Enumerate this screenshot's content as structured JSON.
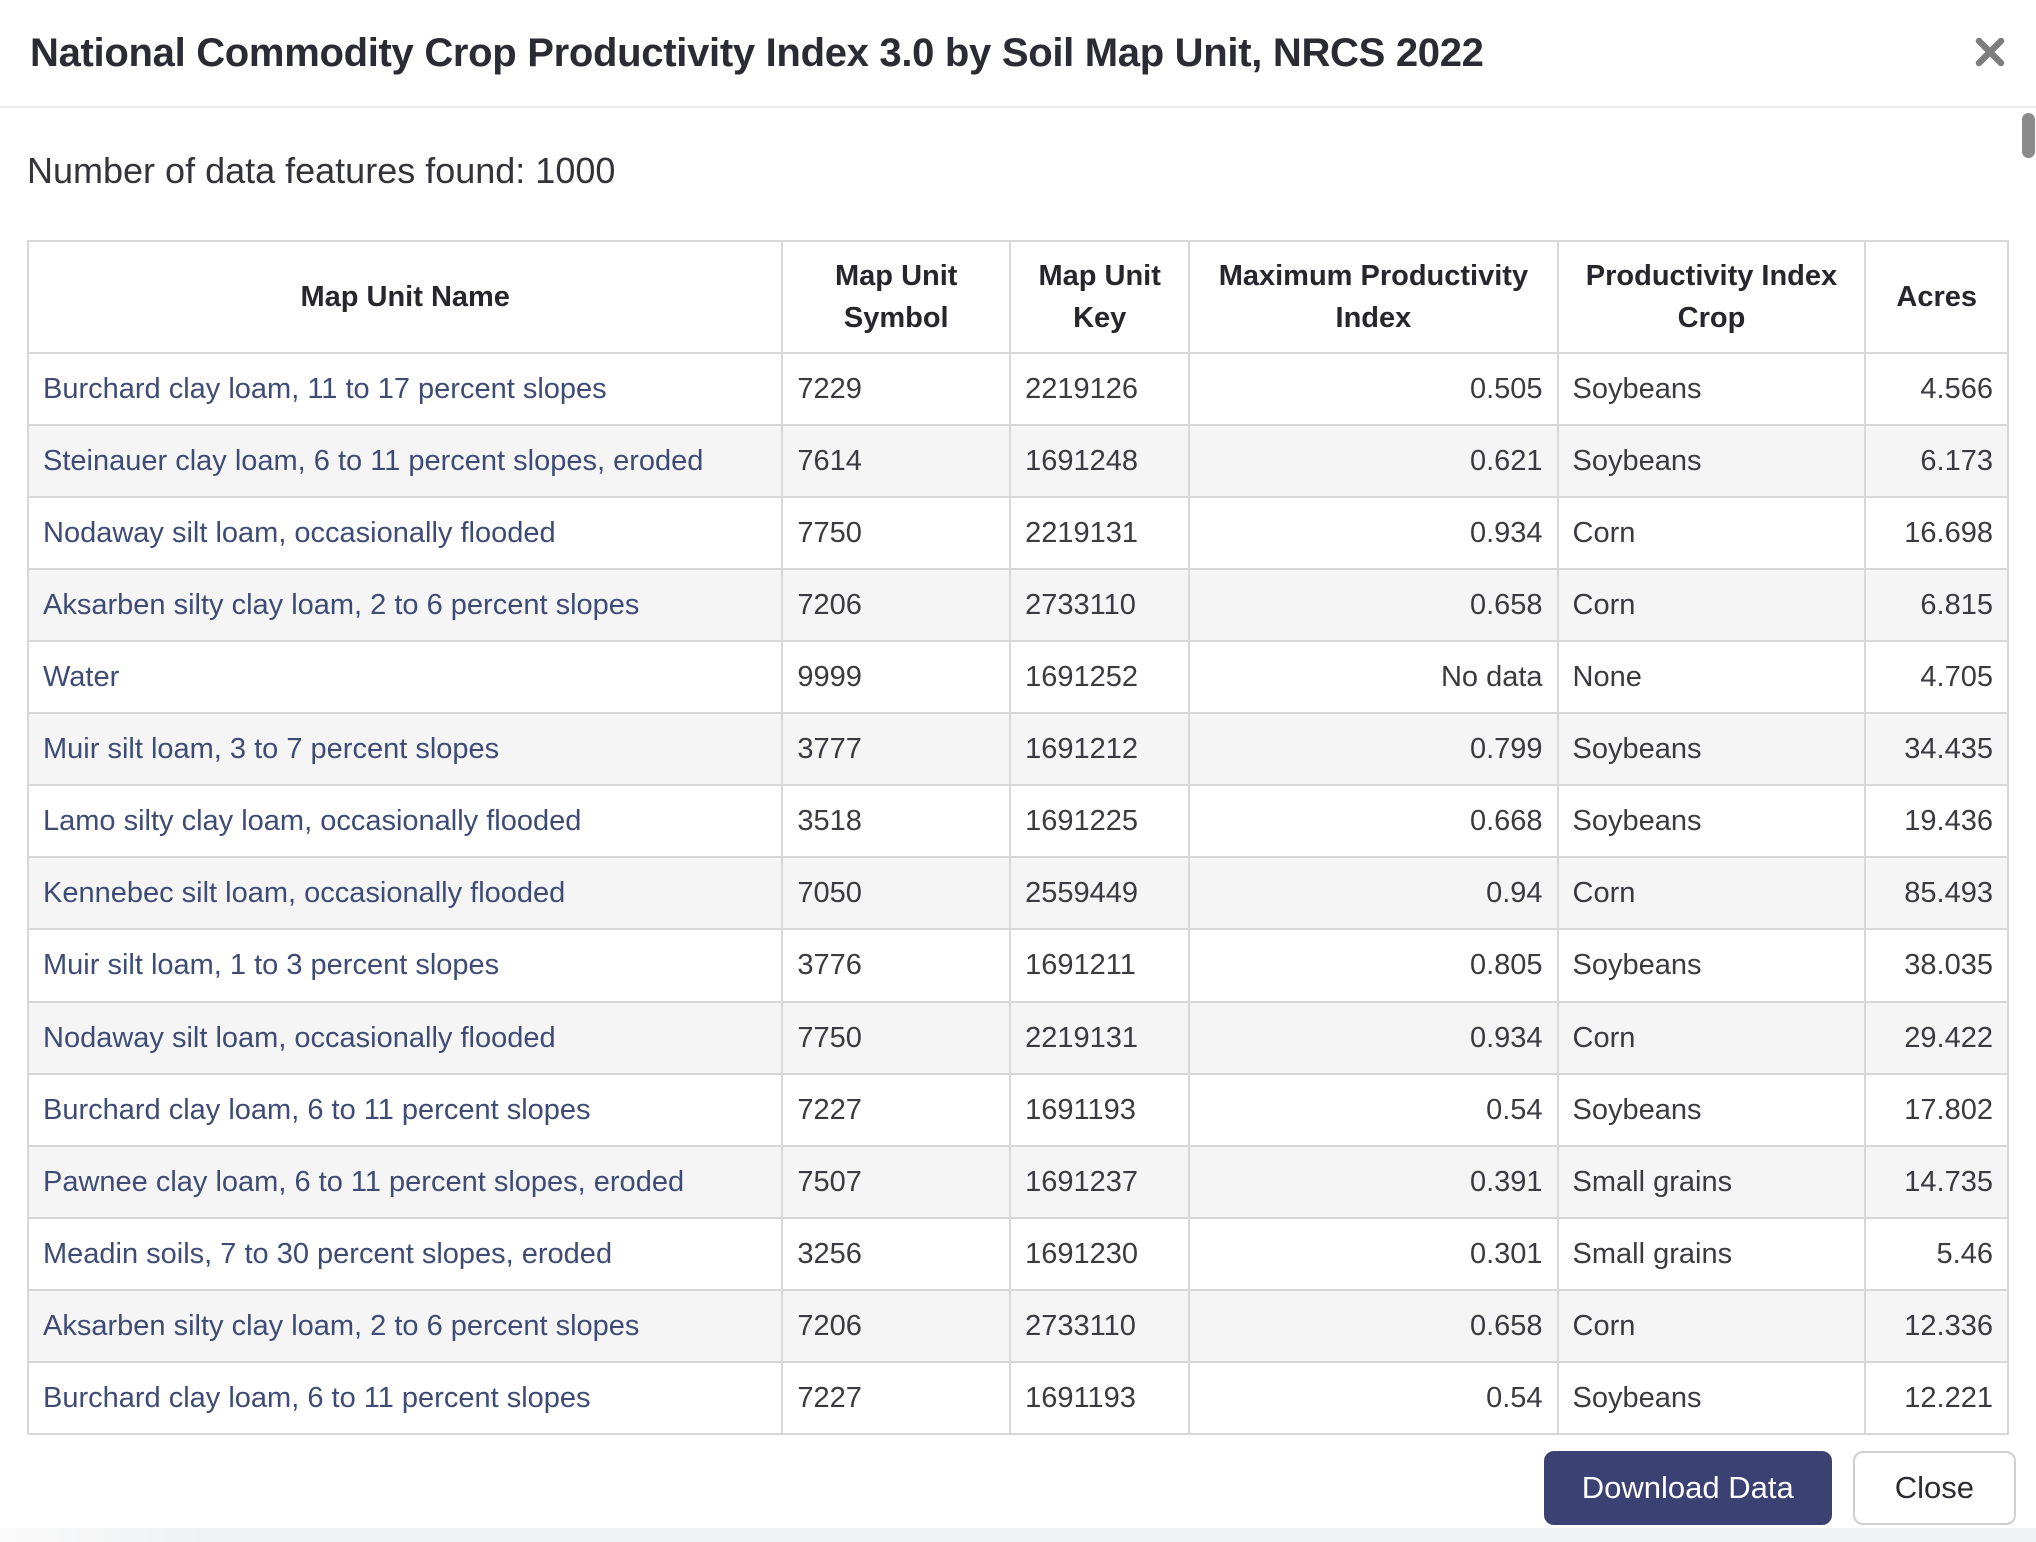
{
  "modal": {
    "title": "National Commodity Crop Productivity Index 3.0 by Soil Map Unit, NRCS 2022"
  },
  "summary": "Number of data features found: 1000",
  "table": {
    "columns": [
      {
        "label": "Map Unit Name"
      },
      {
        "label": "Map Unit Symbol"
      },
      {
        "label": "Map Unit Key"
      },
      {
        "label": "Maximum Productivity Index"
      },
      {
        "label": "Productivity Index Crop"
      },
      {
        "label": "Acres"
      }
    ],
    "rows": [
      {
        "name": "Burchard clay loam, 11 to 17 percent slopes",
        "symbol": "7229",
        "key": "2219126",
        "max_productivity_index": "0.505",
        "crop": "Soybeans",
        "acres": "4.566"
      },
      {
        "name": "Steinauer clay loam, 6 to 11 percent slopes, eroded",
        "symbol": "7614",
        "key": "1691248",
        "max_productivity_index": "0.621",
        "crop": "Soybeans",
        "acres": "6.173"
      },
      {
        "name": "Nodaway silt loam, occasionally flooded",
        "symbol": "7750",
        "key": "2219131",
        "max_productivity_index": "0.934",
        "crop": "Corn",
        "acres": "16.698"
      },
      {
        "name": "Aksarben silty clay loam, 2 to 6 percent slopes",
        "symbol": "7206",
        "key": "2733110",
        "max_productivity_index": "0.658",
        "crop": "Corn",
        "acres": "6.815"
      },
      {
        "name": "Water",
        "symbol": "9999",
        "key": "1691252",
        "max_productivity_index": "No data",
        "crop": "None",
        "acres": "4.705"
      },
      {
        "name": "Muir silt loam, 3 to 7 percent slopes",
        "symbol": "3777",
        "key": "1691212",
        "max_productivity_index": "0.799",
        "crop": "Soybeans",
        "acres": "34.435"
      },
      {
        "name": "Lamo silty clay loam, occasionally flooded",
        "symbol": "3518",
        "key": "1691225",
        "max_productivity_index": "0.668",
        "crop": "Soybeans",
        "acres": "19.436"
      },
      {
        "name": "Kennebec silt loam, occasionally flooded",
        "symbol": "7050",
        "key": "2559449",
        "max_productivity_index": "0.94",
        "crop": "Corn",
        "acres": "85.493"
      },
      {
        "name": "Muir silt loam, 1 to 3 percent slopes",
        "symbol": "3776",
        "key": "1691211",
        "max_productivity_index": "0.805",
        "crop": "Soybeans",
        "acres": "38.035"
      },
      {
        "name": "Nodaway silt loam, occasionally flooded",
        "symbol": "7750",
        "key": "2219131",
        "max_productivity_index": "0.934",
        "crop": "Corn",
        "acres": "29.422"
      },
      {
        "name": "Burchard clay loam, 6 to 11 percent slopes",
        "symbol": "7227",
        "key": "1691193",
        "max_productivity_index": "0.54",
        "crop": "Soybeans",
        "acres": "17.802"
      },
      {
        "name": "Pawnee clay loam, 6 to 11 percent slopes, eroded",
        "symbol": "7507",
        "key": "1691237",
        "max_productivity_index": "0.391",
        "crop": "Small grains",
        "acres": "14.735"
      },
      {
        "name": "Meadin soils, 7 to 30 percent slopes, eroded",
        "symbol": "3256",
        "key": "1691230",
        "max_productivity_index": "0.301",
        "crop": "Small grains",
        "acres": "5.46"
      },
      {
        "name": "Aksarben silty clay loam, 2 to 6 percent slopes",
        "symbol": "7206",
        "key": "2733110",
        "max_productivity_index": "0.658",
        "crop": "Corn",
        "acres": "12.336"
      },
      {
        "name": "Burchard clay loam, 6 to 11 percent slopes",
        "symbol": "7227",
        "key": "1691193",
        "max_productivity_index": "0.54",
        "crop": "Soybeans",
        "acres": "12.221"
      }
    ]
  },
  "footer": {
    "download_label": "Download Data",
    "close_label": "Close"
  },
  "colors": {
    "accent_navy": "#3B4273",
    "link_navy": "#3E4B74",
    "row_stripe": "#F5F5F6",
    "table_border": "#D8D8D9",
    "icon_gray": "#7D7D7D"
  }
}
